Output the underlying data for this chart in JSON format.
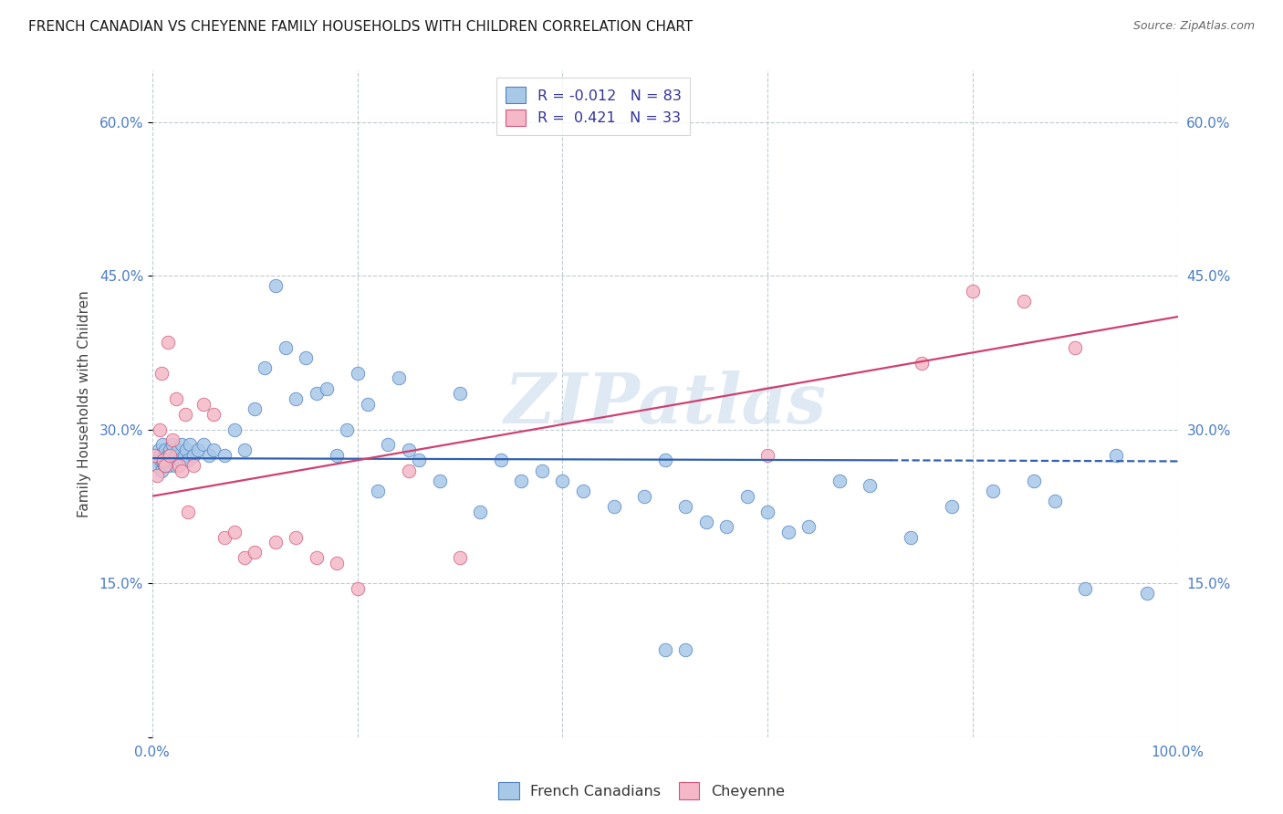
{
  "title": "FRENCH CANADIAN VS CHEYENNE FAMILY HOUSEHOLDS WITH CHILDREN CORRELATION CHART",
  "source": "Source: ZipAtlas.com",
  "ylabel": "Family Households with Children",
  "xlim": [
    0.0,
    100.0
  ],
  "ylim": [
    0.0,
    65.0
  ],
  "yticks": [
    0,
    15,
    30,
    45,
    60
  ],
  "yticklabels_right": [
    "",
    "15.0%",
    "30.0%",
    "45.0%",
    "60.0%"
  ],
  "xtick_positions": [
    0,
    100
  ],
  "xticklabels": [
    "0.0%",
    "100.0%"
  ],
  "blue_R": -0.012,
  "blue_N": 83,
  "pink_R": 0.421,
  "pink_N": 33,
  "blue_color": "#a8c8e8",
  "pink_color": "#f4b8c8",
  "blue_edge_color": "#5080c0",
  "pink_edge_color": "#d05878",
  "blue_line_color": "#3060b0",
  "pink_line_color": "#d04070",
  "legend_blue_label": "French Canadians",
  "legend_pink_label": "Cheyenne",
  "watermark": "ZIPatlas",
  "blue_trend_start_x": 0,
  "blue_trend_start_y": 27.2,
  "blue_trend_end_solid_x": 72,
  "blue_trend_end_solid_y": 27.0,
  "blue_trend_end_dash_x": 100,
  "blue_trend_end_dash_y": 26.9,
  "pink_trend_start_x": 0,
  "pink_trend_start_y": 23.5,
  "pink_trend_end_x": 100,
  "pink_trend_end_y": 41.0,
  "blue_x": [
    0.3,
    0.4,
    0.5,
    0.6,
    0.7,
    0.8,
    0.9,
    1.0,
    1.0,
    1.1,
    1.2,
    1.3,
    1.4,
    1.5,
    1.6,
    1.7,
    1.8,
    2.0,
    2.0,
    2.2,
    2.3,
    2.5,
    2.7,
    2.9,
    3.1,
    3.3,
    3.5,
    3.7,
    4.0,
    4.5,
    5.0,
    5.5,
    6.0,
    7.0,
    8.0,
    9.0,
    10.0,
    11.0,
    12.0,
    13.0,
    14.0,
    15.0,
    16.0,
    17.0,
    18.0,
    19.0,
    20.0,
    21.0,
    22.0,
    23.0,
    24.0,
    25.0,
    26.0,
    28.0,
    30.0,
    32.0,
    34.0,
    36.0,
    38.0,
    40.0,
    42.0,
    45.0,
    48.0,
    50.0,
    52.0,
    54.0,
    56.0,
    58.0,
    60.0,
    62.0,
    64.0,
    67.0,
    70.0,
    74.0,
    78.0,
    82.0,
    86.0,
    88.0,
    91.0,
    94.0,
    97.0,
    50.0,
    52.0
  ],
  "blue_y": [
    27.0,
    27.5,
    26.5,
    28.0,
    27.5,
    27.0,
    26.0,
    28.5,
    27.0,
    27.5,
    26.5,
    28.0,
    27.0,
    27.5,
    26.5,
    28.0,
    27.5,
    27.0,
    28.5,
    26.5,
    27.5,
    28.0,
    27.0,
    28.5,
    27.5,
    28.0,
    27.0,
    28.5,
    27.5,
    28.0,
    28.5,
    27.5,
    28.0,
    27.5,
    30.0,
    28.0,
    32.0,
    36.0,
    44.0,
    38.0,
    33.0,
    37.0,
    33.5,
    34.0,
    27.5,
    30.0,
    35.5,
    32.5,
    24.0,
    28.5,
    35.0,
    28.0,
    27.0,
    25.0,
    33.5,
    22.0,
    27.0,
    25.0,
    26.0,
    25.0,
    24.0,
    22.5,
    23.5,
    27.0,
    22.5,
    21.0,
    20.5,
    23.5,
    22.0,
    20.0,
    20.5,
    25.0,
    24.5,
    19.5,
    22.5,
    24.0,
    25.0,
    23.0,
    14.5,
    27.5,
    14.0,
    8.5,
    8.5
  ],
  "pink_x": [
    0.2,
    0.5,
    0.7,
    0.9,
    1.1,
    1.3,
    1.5,
    1.7,
    2.0,
    2.3,
    2.6,
    2.9,
    3.2,
    3.5,
    4.0,
    5.0,
    6.0,
    7.0,
    8.0,
    9.0,
    10.0,
    12.0,
    14.0,
    16.0,
    18.0,
    20.0,
    25.0,
    30.0,
    60.0,
    75.0,
    80.0,
    85.0,
    90.0
  ],
  "pink_y": [
    27.5,
    25.5,
    30.0,
    35.5,
    27.0,
    26.5,
    38.5,
    27.5,
    29.0,
    33.0,
    26.5,
    26.0,
    31.5,
    22.0,
    26.5,
    32.5,
    31.5,
    19.5,
    20.0,
    17.5,
    18.0,
    19.0,
    19.5,
    17.5,
    17.0,
    14.5,
    26.0,
    17.5,
    27.5,
    36.5,
    43.5,
    42.5,
    38.0
  ]
}
